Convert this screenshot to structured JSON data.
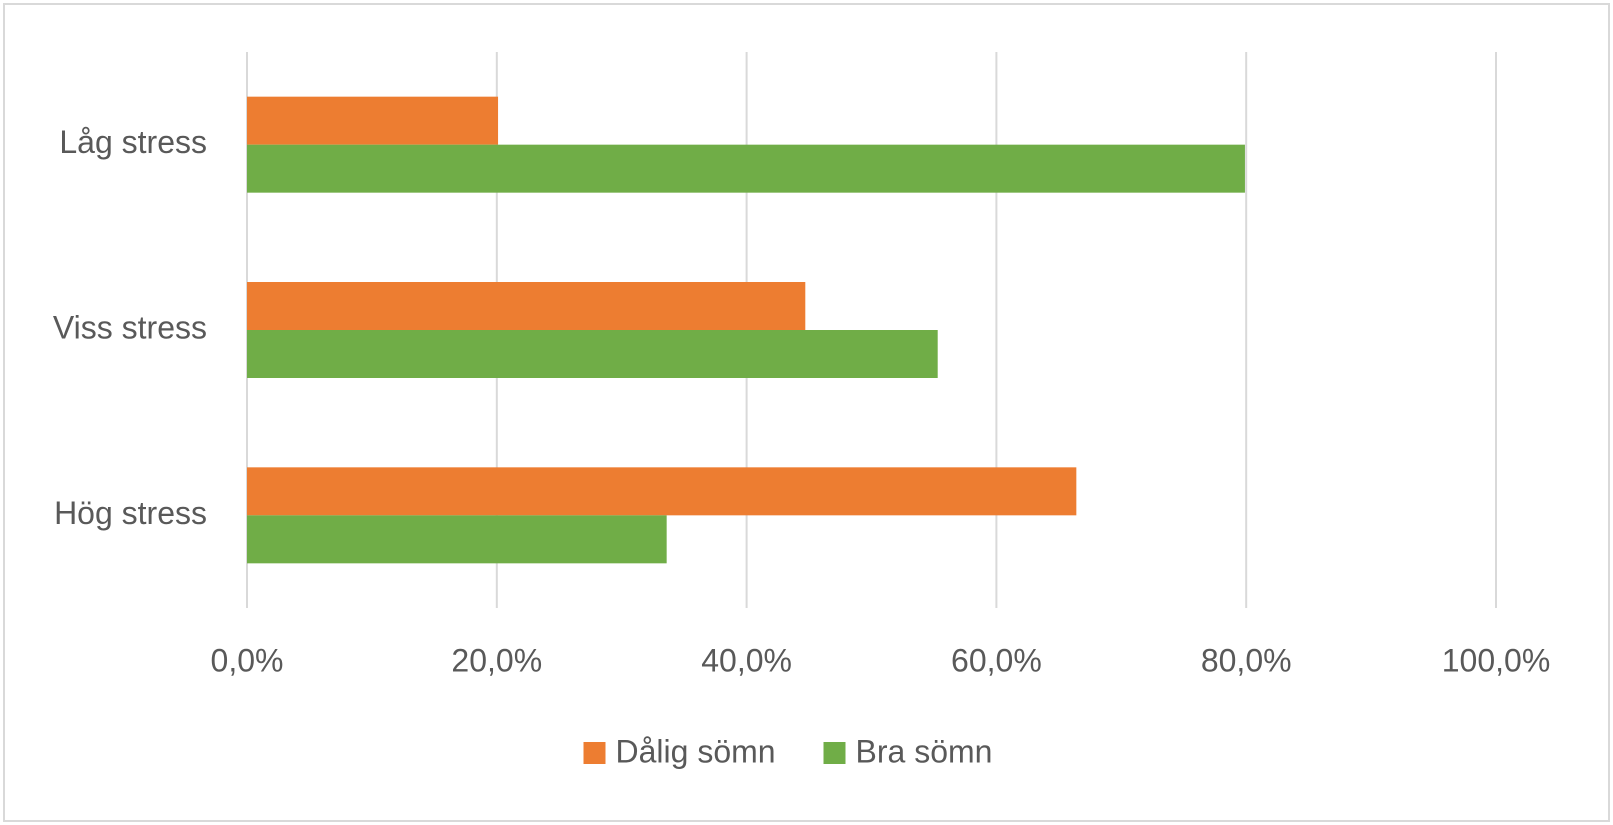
{
  "chart_data": {
    "type": "bar",
    "orientation": "horizontal",
    "categories": [
      "Låg stress",
      "Viss stress",
      "Hög stress"
    ],
    "series": [
      {
        "name": "Dålig sömn",
        "color": "#ed7d31",
        "values": [
          20.1,
          44.7,
          66.4
        ]
      },
      {
        "name": "Bra sömn",
        "color": "#70ad47",
        "values": [
          79.9,
          55.3,
          33.6
        ]
      }
    ],
    "xlim": [
      0,
      100
    ],
    "xticks": [
      {
        "value": 0,
        "label": "0,0%"
      },
      {
        "value": 20,
        "label": "20,0%"
      },
      {
        "value": 40,
        "label": "40,0%"
      },
      {
        "value": 60,
        "label": "60,0%"
      },
      {
        "value": 80,
        "label": "80,0%"
      },
      {
        "value": 100,
        "label": "100,0%"
      }
    ],
    "grid": true,
    "legend": "bottom"
  }
}
